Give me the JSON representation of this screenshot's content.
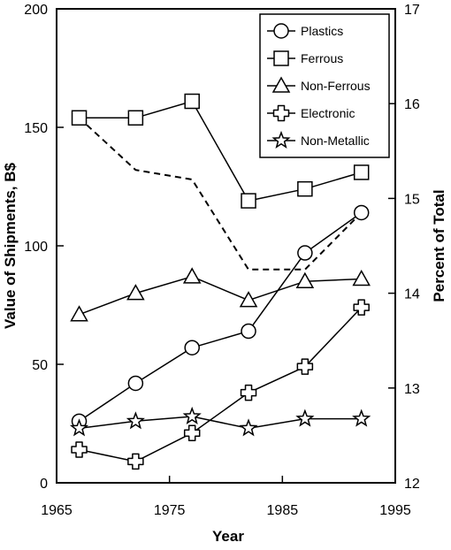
{
  "chart_data": {
    "type": "line",
    "title": "",
    "xlabel": "Year",
    "ylabel": "Value of Shipments, B$",
    "y2label": "Percent of Total",
    "xlim": [
      1965,
      1995
    ],
    "ylim": [
      0,
      200
    ],
    "y2lim": [
      12,
      17
    ],
    "x_ticks": [
      1965,
      1975,
      1985,
      1995
    ],
    "y_ticks": [
      0,
      50,
      100,
      150,
      200
    ],
    "y2_ticks": [
      12,
      13,
      14,
      15,
      16,
      17
    ],
    "grid": false,
    "legend_position": "top-right",
    "series": [
      {
        "name": "Plastics",
        "marker": "circle",
        "axis": "left",
        "x": [
          1967,
          1972,
          1977,
          1982,
          1987,
          1992
        ],
        "values": [
          26,
          42,
          57,
          64,
          97,
          114
        ]
      },
      {
        "name": "Ferrous",
        "marker": "square",
        "axis": "left",
        "x": [
          1967,
          1972,
          1977,
          1982,
          1987,
          1992
        ],
        "values": [
          154,
          154,
          161,
          119,
          124,
          131
        ]
      },
      {
        "name": "Non-Ferrous",
        "marker": "triangle",
        "axis": "left",
        "x": [
          1967,
          1972,
          1977,
          1982,
          1987,
          1992
        ],
        "values": [
          71,
          80,
          87,
          77,
          85,
          86
        ]
      },
      {
        "name": "Electronic",
        "marker": "cross",
        "axis": "left",
        "x": [
          1967,
          1972,
          1977,
          1982,
          1987,
          1992
        ],
        "values": [
          14,
          9,
          21,
          38,
          49,
          74
        ]
      },
      {
        "name": "Non-Metallic",
        "marker": "star",
        "axis": "left",
        "x": [
          1967,
          1972,
          1977,
          1982,
          1987,
          1992
        ],
        "values": [
          23,
          26,
          28,
          23,
          27,
          27
        ]
      }
    ],
    "secondary_series": [
      {
        "style": "dashed",
        "axis": "right",
        "x": [
          1967,
          1972,
          1977,
          1982,
          1987,
          1992
        ],
        "values": [
          15.85,
          15.3,
          15.2,
          14.25,
          14.25,
          14.85
        ]
      }
    ]
  }
}
